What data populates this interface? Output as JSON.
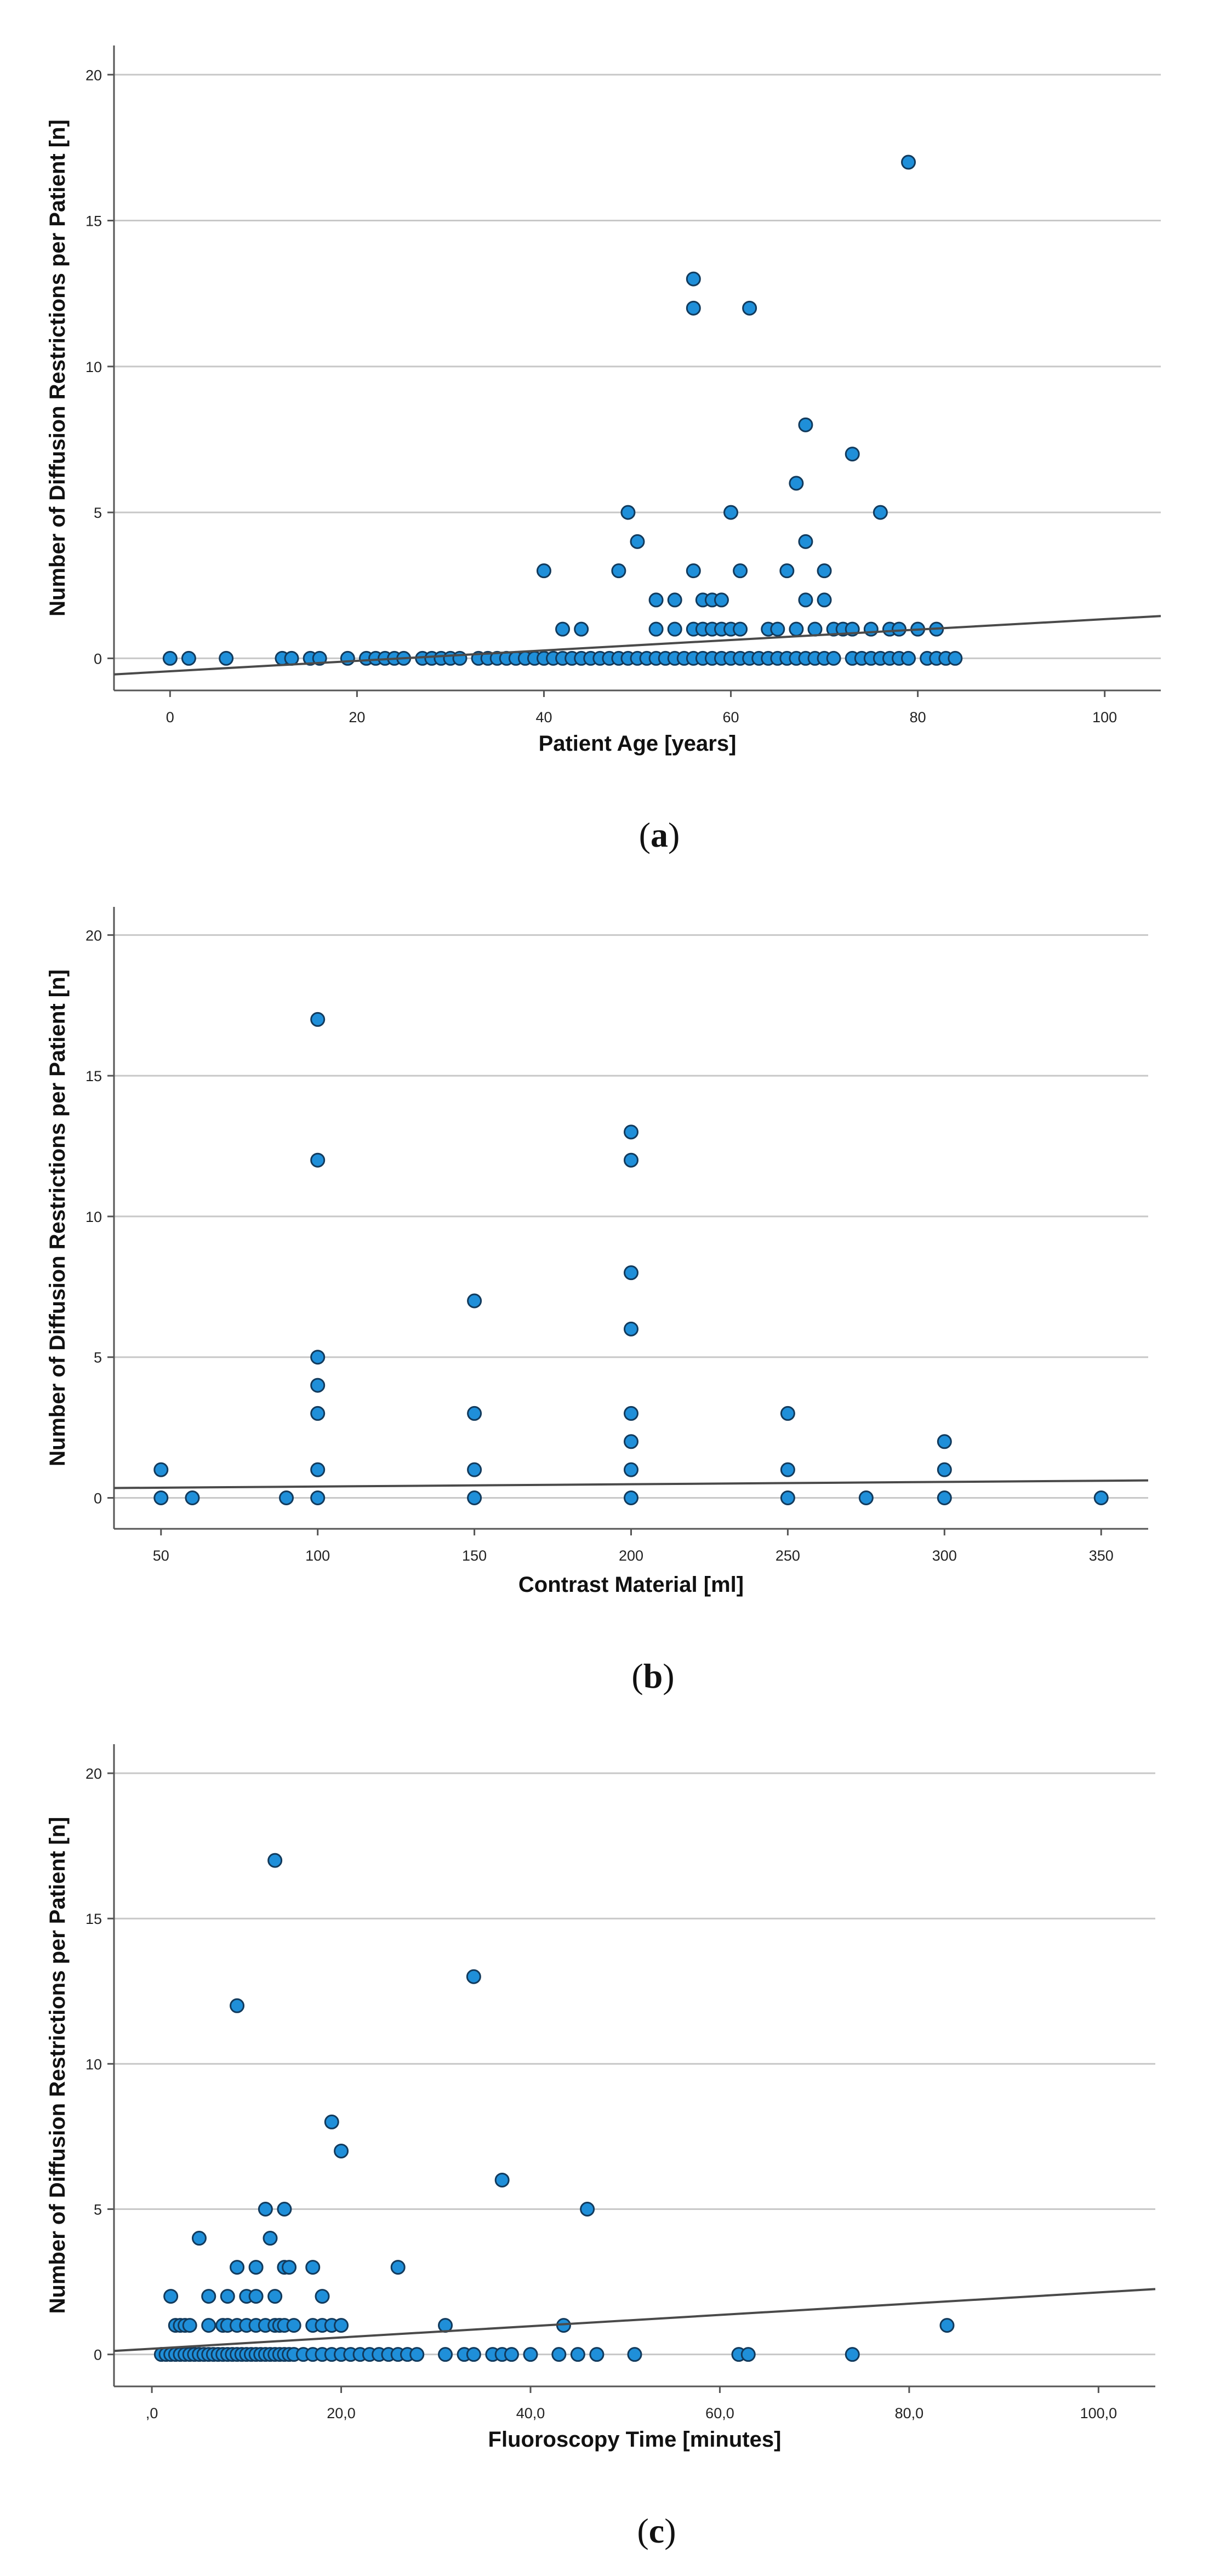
{
  "chart_data": [
    {
      "type": "scatter",
      "caption": "a",
      "xlabel": "Patient Age [years]",
      "ylabel": "Number of Diffusion Restrictions per Patient [n]",
      "xlim": [
        -6,
        106
      ],
      "ylim": [
        -1.1,
        21
      ],
      "xticks": [
        0,
        20,
        40,
        60,
        80,
        100
      ],
      "xtick_labels": [
        "0",
        "20",
        "40",
        "60",
        "80",
        "100"
      ],
      "yticks": [
        0,
        5,
        10,
        15,
        20
      ],
      "ytick_labels": [
        "0",
        "5",
        "10",
        "15",
        "20"
      ],
      "gridlines": "horizontal",
      "fit_line": {
        "x1": -6,
        "y1": -0.55,
        "x2": 106,
        "y2": 1.45
      },
      "points": [
        [
          0,
          0
        ],
        [
          2,
          0
        ],
        [
          6,
          0
        ],
        [
          12,
          0
        ],
        [
          13,
          0
        ],
        [
          15,
          0
        ],
        [
          16,
          0
        ],
        [
          19,
          0
        ],
        [
          21,
          0
        ],
        [
          22,
          0
        ],
        [
          23,
          0
        ],
        [
          24,
          0
        ],
        [
          25,
          0
        ],
        [
          27,
          0
        ],
        [
          28,
          0
        ],
        [
          29,
          0
        ],
        [
          30,
          0
        ],
        [
          31,
          0
        ],
        [
          33,
          0
        ],
        [
          34,
          0
        ],
        [
          35,
          0
        ],
        [
          36,
          0
        ],
        [
          37,
          0
        ],
        [
          38,
          0
        ],
        [
          39,
          0
        ],
        [
          40,
          0
        ],
        [
          41,
          0
        ],
        [
          42,
          0
        ],
        [
          43,
          0
        ],
        [
          44,
          0
        ],
        [
          45,
          0
        ],
        [
          46,
          0
        ],
        [
          47,
          0
        ],
        [
          48,
          0
        ],
        [
          49,
          0
        ],
        [
          50,
          0
        ],
        [
          51,
          0
        ],
        [
          52,
          0
        ],
        [
          53,
          0
        ],
        [
          54,
          0
        ],
        [
          55,
          0
        ],
        [
          56,
          0
        ],
        [
          57,
          0
        ],
        [
          58,
          0
        ],
        [
          59,
          0
        ],
        [
          60,
          0
        ],
        [
          61,
          0
        ],
        [
          62,
          0
        ],
        [
          63,
          0
        ],
        [
          64,
          0
        ],
        [
          65,
          0
        ],
        [
          66,
          0
        ],
        [
          67,
          0
        ],
        [
          68,
          0
        ],
        [
          69,
          0
        ],
        [
          70,
          0
        ],
        [
          71,
          0
        ],
        [
          73,
          0
        ],
        [
          74,
          0
        ],
        [
          75,
          0
        ],
        [
          76,
          0
        ],
        [
          77,
          0
        ],
        [
          78,
          0
        ],
        [
          79,
          0
        ],
        [
          81,
          0
        ],
        [
          82,
          0
        ],
        [
          83,
          0
        ],
        [
          84,
          0
        ],
        [
          42,
          1
        ],
        [
          44,
          1
        ],
        [
          52,
          1
        ],
        [
          54,
          1
        ],
        [
          56,
          1
        ],
        [
          57,
          1
        ],
        [
          58,
          1
        ],
        [
          59,
          1
        ],
        [
          60,
          1
        ],
        [
          61,
          1
        ],
        [
          64,
          1
        ],
        [
          65,
          1
        ],
        [
          67,
          1
        ],
        [
          69,
          1
        ],
        [
          71,
          1
        ],
        [
          72,
          1
        ],
        [
          73,
          1
        ],
        [
          75,
          1
        ],
        [
          77,
          1
        ],
        [
          78,
          1
        ],
        [
          80,
          1
        ],
        [
          82,
          1
        ],
        [
          52,
          2
        ],
        [
          54,
          2
        ],
        [
          57,
          2
        ],
        [
          58,
          2
        ],
        [
          59,
          2
        ],
        [
          68,
          2
        ],
        [
          70,
          2
        ],
        [
          40,
          3
        ],
        [
          48,
          3
        ],
        [
          56,
          3
        ],
        [
          61,
          3
        ],
        [
          66,
          3
        ],
        [
          70,
          3
        ],
        [
          50,
          4
        ],
        [
          68,
          4
        ],
        [
          49,
          5
        ],
        [
          60,
          5
        ],
        [
          76,
          5
        ],
        [
          67,
          6
        ],
        [
          73,
          7
        ],
        [
          68,
          8
        ],
        [
          56,
          12
        ],
        [
          62,
          12
        ],
        [
          56,
          13
        ],
        [
          79,
          17
        ]
      ]
    },
    {
      "type": "scatter",
      "caption": "b",
      "xlabel": "Contrast Material [ml]",
      "ylabel": "Number of Diffusion Restrictions per Patient [n]",
      "xlim": [
        35,
        365
      ],
      "ylim": [
        -1.1,
        21
      ],
      "xticks": [
        50,
        100,
        150,
        200,
        250,
        300,
        350
      ],
      "xtick_labels": [
        "50",
        "100",
        "150",
        "200",
        "250",
        "300",
        "350"
      ],
      "yticks": [
        0,
        5,
        10,
        15,
        20
      ],
      "ytick_labels": [
        "0",
        "5",
        "10",
        "15",
        "20"
      ],
      "gridlines": "horizontal",
      "fit_line": {
        "x1": 35,
        "y1": 0.35,
        "x2": 365,
        "y2": 0.62
      },
      "points": [
        [
          50,
          0
        ],
        [
          60,
          0
        ],
        [
          90,
          0
        ],
        [
          100,
          0
        ],
        [
          150,
          0
        ],
        [
          200,
          0
        ],
        [
          250,
          0
        ],
        [
          275,
          0
        ],
        [
          300,
          0
        ],
        [
          350,
          0
        ],
        [
          50,
          1
        ],
        [
          100,
          1
        ],
        [
          150,
          1
        ],
        [
          200,
          1
        ],
        [
          250,
          1
        ],
        [
          300,
          1
        ],
        [
          200,
          2
        ],
        [
          300,
          2
        ],
        [
          100,
          3
        ],
        [
          150,
          3
        ],
        [
          200,
          3
        ],
        [
          250,
          3
        ],
        [
          100,
          4
        ],
        [
          100,
          5
        ],
        [
          200,
          6
        ],
        [
          150,
          7
        ],
        [
          200,
          8
        ],
        [
          100,
          12
        ],
        [
          200,
          12
        ],
        [
          200,
          13
        ],
        [
          100,
          17
        ]
      ]
    },
    {
      "type": "scatter",
      "caption": "c",
      "xlabel": "Fluoroscopy Time [minutes]",
      "ylabel": "Number of Diffusion Restrictions per Patient [n]",
      "xlim": [
        -4,
        106
      ],
      "ylim": [
        -1.1,
        21
      ],
      "xticks": [
        0,
        20,
        40,
        60,
        80,
        100
      ],
      "xtick_labels": [
        ",0",
        "20,0",
        "40,0",
        "60,0",
        "80,0",
        "100,0"
      ],
      "yticks": [
        0,
        5,
        10,
        15,
        20
      ],
      "ytick_labels": [
        "0",
        "5",
        "10",
        "15",
        "20"
      ],
      "gridlines": "horizontal",
      "fit_line": {
        "x1": -4,
        "y1": 0.12,
        "x2": 106,
        "y2": 2.25
      },
      "points": [
        [
          1,
          0
        ],
        [
          1.5,
          0
        ],
        [
          2,
          0
        ],
        [
          2.5,
          0
        ],
        [
          3,
          0
        ],
        [
          3.5,
          0
        ],
        [
          4,
          0
        ],
        [
          4.5,
          0
        ],
        [
          5,
          0
        ],
        [
          5.5,
          0
        ],
        [
          6,
          0
        ],
        [
          6.5,
          0
        ],
        [
          7,
          0
        ],
        [
          7.5,
          0
        ],
        [
          8,
          0
        ],
        [
          8.5,
          0
        ],
        [
          9,
          0
        ],
        [
          9.5,
          0
        ],
        [
          10,
          0
        ],
        [
          10.5,
          0
        ],
        [
          11,
          0
        ],
        [
          11.5,
          0
        ],
        [
          12,
          0
        ],
        [
          12.5,
          0
        ],
        [
          13,
          0
        ],
        [
          13.5,
          0
        ],
        [
          14,
          0
        ],
        [
          14.5,
          0
        ],
        [
          15,
          0
        ],
        [
          16,
          0
        ],
        [
          17,
          0
        ],
        [
          18,
          0
        ],
        [
          19,
          0
        ],
        [
          20,
          0
        ],
        [
          21,
          0
        ],
        [
          22,
          0
        ],
        [
          23,
          0
        ],
        [
          24,
          0
        ],
        [
          25,
          0
        ],
        [
          26,
          0
        ],
        [
          27,
          0
        ],
        [
          28,
          0
        ],
        [
          31,
          0
        ],
        [
          33,
          0
        ],
        [
          34,
          0
        ],
        [
          36,
          0
        ],
        [
          37,
          0
        ],
        [
          38,
          0
        ],
        [
          40,
          0
        ],
        [
          43,
          0
        ],
        [
          45,
          0
        ],
        [
          47,
          0
        ],
        [
          51,
          0
        ],
        [
          62,
          0
        ],
        [
          63,
          0
        ],
        [
          74,
          0
        ],
        [
          2.5,
          1
        ],
        [
          3,
          1
        ],
        [
          3.5,
          1
        ],
        [
          4,
          1
        ],
        [
          6,
          1
        ],
        [
          7.5,
          1
        ],
        [
          8,
          1
        ],
        [
          9,
          1
        ],
        [
          10,
          1
        ],
        [
          11,
          1
        ],
        [
          12,
          1
        ],
        [
          13,
          1
        ],
        [
          13.5,
          1
        ],
        [
          14,
          1
        ],
        [
          15,
          1
        ],
        [
          17,
          1
        ],
        [
          18,
          1
        ],
        [
          19,
          1
        ],
        [
          20,
          1
        ],
        [
          31,
          1
        ],
        [
          43.5,
          1
        ],
        [
          84,
          1
        ],
        [
          2,
          2
        ],
        [
          6,
          2
        ],
        [
          8,
          2
        ],
        [
          10,
          2
        ],
        [
          11,
          2
        ],
        [
          13,
          2
        ],
        [
          18,
          2
        ],
        [
          9,
          3
        ],
        [
          11,
          3
        ],
        [
          14,
          3
        ],
        [
          14.5,
          3
        ],
        [
          17,
          3
        ],
        [
          26,
          3
        ],
        [
          5,
          4
        ],
        [
          12.5,
          4
        ],
        [
          12,
          5
        ],
        [
          14,
          5
        ],
        [
          46,
          5
        ],
        [
          37,
          6
        ],
        [
          20,
          7
        ],
        [
          19,
          8
        ],
        [
          9,
          12
        ],
        [
          34,
          13
        ],
        [
          13,
          17
        ]
      ]
    }
  ]
}
